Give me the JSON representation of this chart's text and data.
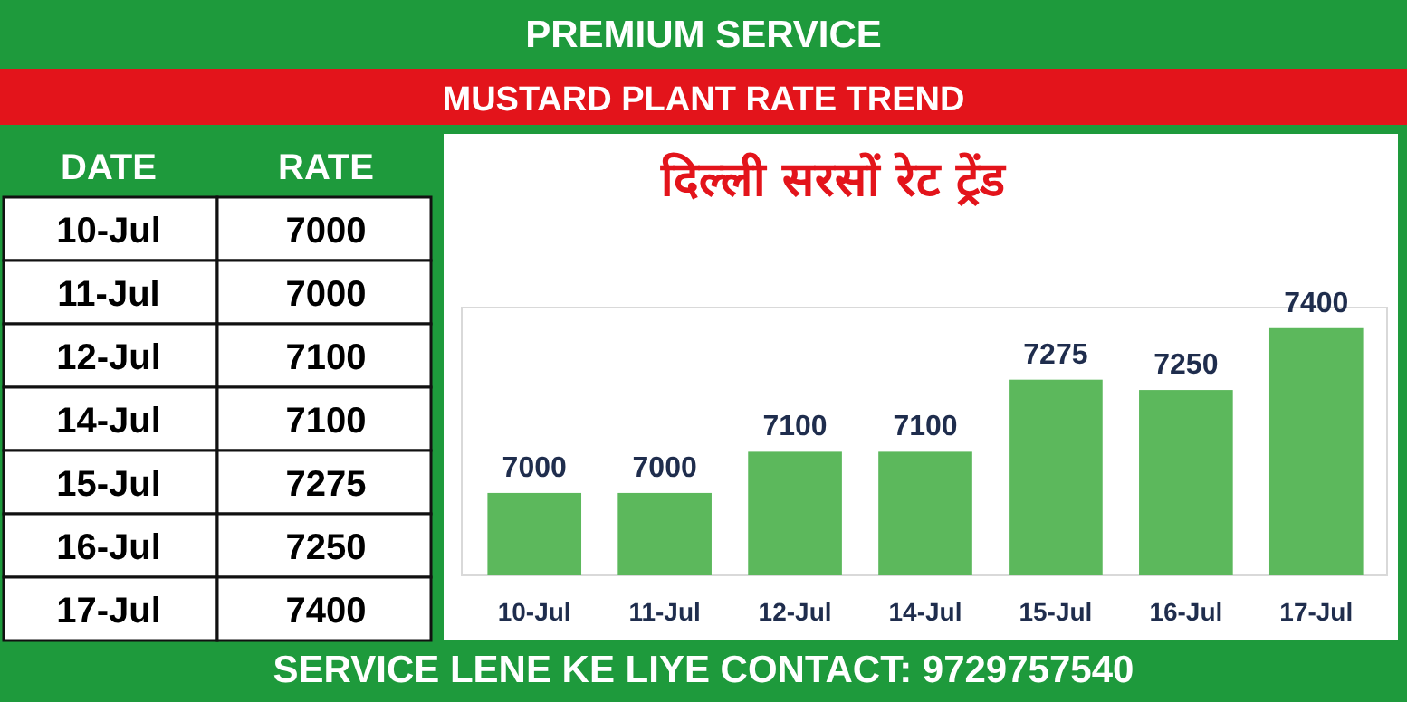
{
  "chart_data": [
    {
      "type": "other",
      "annotations": [
        "DATE",
        "RATE"
      ],
      "categories": [
        "10-Jul",
        "11-Jul",
        "12-Jul",
        "14-Jul",
        "15-Jul",
        "16-Jul",
        "17-Jul"
      ],
      "values": [
        7000,
        7000,
        7100,
        7100,
        7275,
        7250,
        7400
      ],
      "data_labels": true
    },
    {
      "type": "bar",
      "title": "MUSTARD PLANT RATE TREND",
      "subtitle": "दिल्ली सरसों रेट ट्रेंड",
      "annotations": [
        "PREMIUM SERVICE",
        "SERVICE LENE KE LIYE CONTACT: 9729757540"
      ],
      "categories": [
        "10-Jul",
        "11-Jul",
        "12-Jul",
        "14-Jul",
        "15-Jul",
        "16-Jul",
        "17-Jul"
      ],
      "values": [
        7000,
        7000,
        7100,
        7100,
        7275,
        7250,
        7400
      ],
      "data_labels": true,
      "ylim": [
        6800,
        7450
      ],
      "color": "#5cb85c"
    }
  ]
}
